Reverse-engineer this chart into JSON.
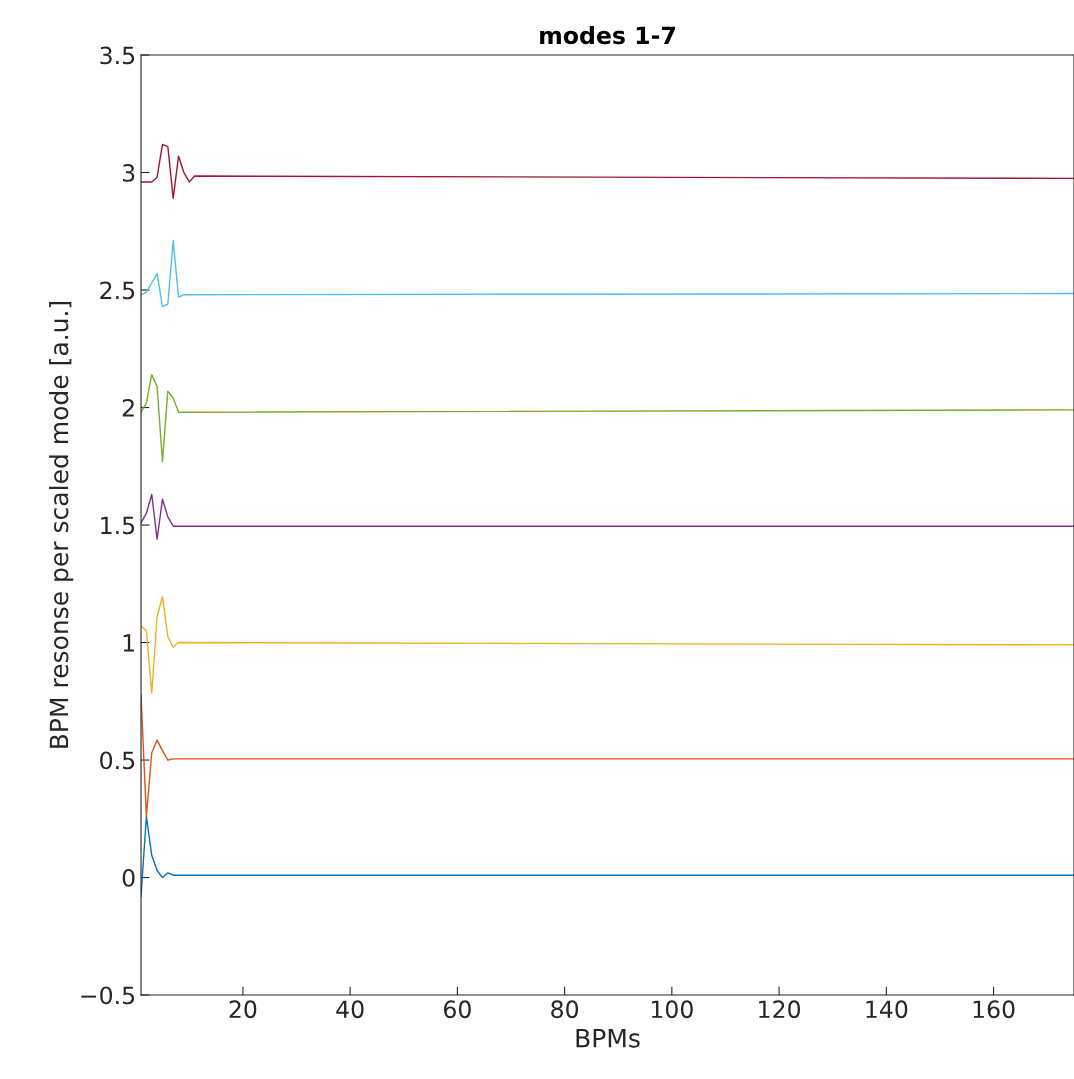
{
  "chart_data": {
    "type": "line",
    "title": "modes 1-7",
    "xlabel": "BPMs",
    "ylabel": "BPM resonse per scaled mode [a.u.]",
    "xlim": [
      1,
      175
    ],
    "xticks": [
      20,
      40,
      60,
      80,
      100,
      120,
      140,
      160
    ],
    "ylim": [
      -0.5,
      3.5
    ],
    "yticks": [
      {
        "value": -0.5,
        "label": "−0.5"
      },
      0,
      0.5,
      1,
      1.5,
      2,
      2.5,
      3,
      3.5
    ],
    "grid": false,
    "legend": false,
    "marker": "none",
    "line_style": "solid",
    "series": [
      {
        "color": "#0072bd",
        "x": [
          1,
          2,
          3,
          4,
          5,
          6,
          7,
          8,
          175
        ],
        "values": [
          -0.08,
          0.26,
          0.095,
          0.03,
          0.0,
          0.02,
          0.01,
          0.01,
          0.01
        ]
      },
      {
        "color": "#d95319",
        "x": [
          1,
          2,
          3,
          4,
          5,
          6,
          7,
          175
        ],
        "values": [
          0.78,
          0.26,
          0.53,
          0.585,
          0.54,
          0.5,
          0.505,
          0.505
        ]
      },
      {
        "color": "#edb120",
        "x": [
          1,
          2,
          3,
          4,
          5,
          6,
          7,
          8,
          175
        ],
        "values": [
          1.07,
          1.05,
          0.785,
          1.11,
          1.195,
          1.025,
          0.98,
          1.0,
          0.99
        ]
      },
      {
        "color": "#7e2f8e",
        "x": [
          1,
          2,
          3,
          4,
          5,
          6,
          7,
          175
        ],
        "values": [
          1.51,
          1.55,
          1.63,
          1.44,
          1.61,
          1.535,
          1.495,
          1.495
        ]
      },
      {
        "color": "#77ac30",
        "x": [
          1,
          2,
          3,
          4,
          5,
          6,
          7,
          8,
          175
        ],
        "values": [
          1.98,
          2.02,
          2.14,
          2.09,
          1.77,
          2.07,
          2.04,
          1.98,
          1.99
        ]
      },
      {
        "color": "#4dbeee",
        "x": [
          1,
          2,
          3,
          4,
          5,
          6,
          7,
          8,
          9,
          175
        ],
        "values": [
          2.48,
          2.49,
          2.53,
          2.57,
          2.43,
          2.44,
          2.71,
          2.47,
          2.48,
          2.485
        ]
      },
      {
        "color": "#a2142f",
        "x": [
          1,
          2,
          3,
          4,
          5,
          6,
          7,
          8,
          9,
          10,
          11,
          175
        ],
        "values": [
          2.96,
          2.96,
          2.96,
          2.98,
          3.12,
          3.11,
          2.89,
          3.07,
          3.0,
          2.96,
          2.985,
          2.975
        ]
      }
    ]
  }
}
